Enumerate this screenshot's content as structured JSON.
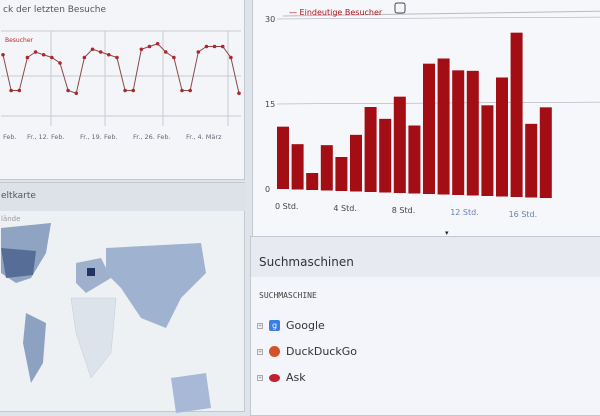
{
  "line_panel": {
    "title": "ck der letzten Besuche",
    "legend": "Besucher",
    "legend_color": "#c0262c"
  },
  "bar_panel": {
    "legend": "Eindeutige Besucher",
    "legend_color": "#b3121a"
  },
  "map_panel": {
    "title": "eltkarte",
    "sub": "lände"
  },
  "search_panel": {
    "title": "Suchmaschinen",
    "column": "SUCHMASCHINE",
    "items": [
      {
        "label": "Google",
        "icon": "google-icon",
        "color": "#3b7de0"
      },
      {
        "label": "DuckDuckGo",
        "icon": "duckduckgo-icon",
        "color": "#d2522b"
      },
      {
        "label": "Ask",
        "icon": "ask-icon",
        "color": "#c0202a"
      }
    ]
  },
  "chart_data": [
    {
      "type": "line",
      "title": "",
      "legend": "Besucher",
      "x_tick_labels": [
        "Feb.",
        "Fr., 12. Feb.",
        "Fr., 19. Feb.",
        "Fr., 26. Feb.",
        "Fr., 4. März"
      ],
      "values": [
        15,
        2,
        2,
        14,
        16,
        15,
        14,
        12,
        2,
        1,
        14,
        17,
        16,
        15,
        14,
        2,
        2,
        17,
        18,
        19,
        16,
        14,
        2,
        2,
        16,
        18,
        18,
        18,
        14,
        1
      ],
      "grid": true
    },
    {
      "type": "bar",
      "legend": "Eindeutige Besucher",
      "y_ticks": [
        0,
        15,
        30
      ],
      "ylim": [
        0,
        30
      ],
      "x_tick_labels": [
        "0 Std.",
        "4 Std.",
        "8 Std.",
        "12 Std.",
        "16 Std."
      ],
      "categories": [
        0,
        1,
        2,
        3,
        4,
        5,
        6,
        7,
        8,
        9,
        10,
        11,
        12,
        13,
        14,
        15,
        16,
        17,
        18
      ],
      "values": [
        11,
        8,
        3,
        8,
        6,
        10,
        15,
        13,
        17,
        12,
        23,
        24,
        22,
        22,
        16,
        21,
        29,
        13,
        16
      ],
      "grid": true
    }
  ]
}
